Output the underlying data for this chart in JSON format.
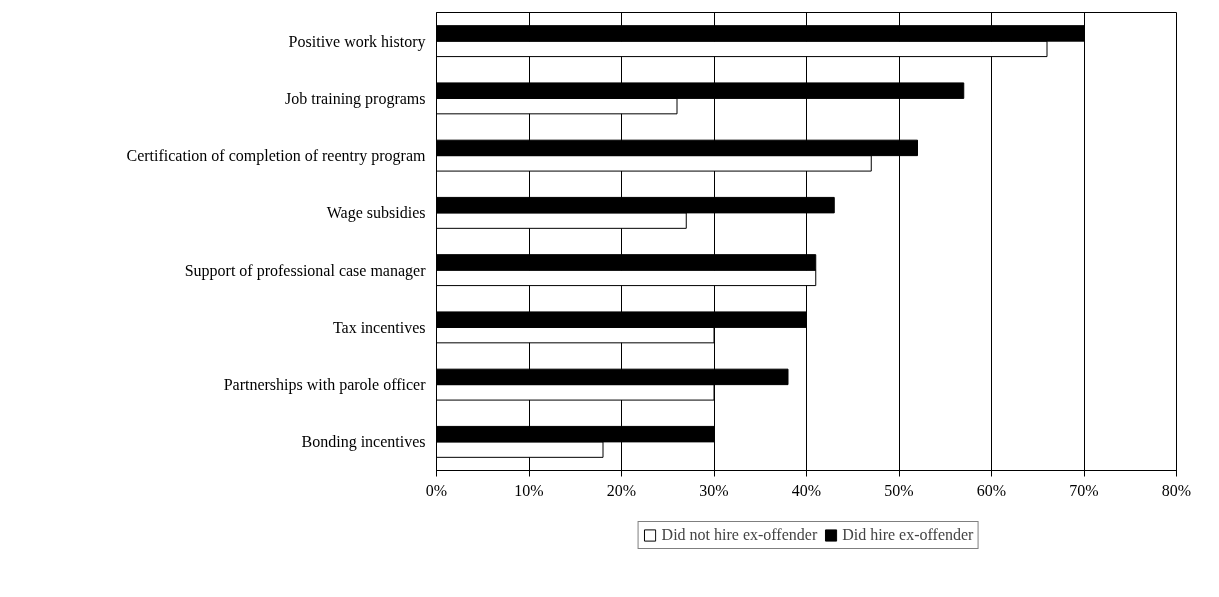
{
  "chart_data": {
    "type": "bar",
    "orientation": "horizontal",
    "categories": [
      "Positive work history",
      "Job training programs",
      "Certification of completion of reentry program",
      "Wage subsidies",
      "Support of professional case manager",
      "Tax incentives",
      "Partnerships with parole officer",
      "Bonding incentives"
    ],
    "series": [
      {
        "name": "Did not hire ex-offender",
        "color": "#ffffff",
        "values": [
          66,
          26,
          47,
          27,
          41,
          30,
          30,
          18
        ]
      },
      {
        "name": "Did hire ex-offender",
        "color": "#000000",
        "values": [
          70,
          57,
          52,
          43,
          41,
          40,
          38,
          30
        ]
      }
    ],
    "xlim": [
      0,
      80
    ],
    "xticks": [
      {
        "value": 0,
        "label": "0%"
      },
      {
        "value": 10,
        "label": "10%"
      },
      {
        "value": 20,
        "label": "20%"
      },
      {
        "value": 30,
        "label": "30%"
      },
      {
        "value": 40,
        "label": "40%"
      },
      {
        "value": 50,
        "label": "50%"
      },
      {
        "value": 60,
        "label": "60%"
      },
      {
        "value": 70,
        "label": "70%"
      },
      {
        "value": 80,
        "label": "80%"
      }
    ],
    "grid": "x",
    "legend": "bottom"
  }
}
